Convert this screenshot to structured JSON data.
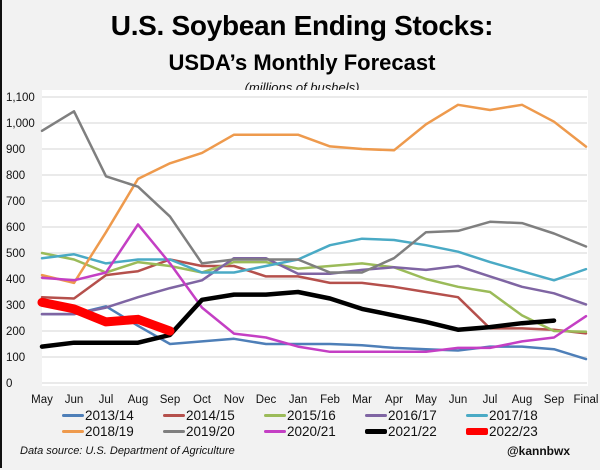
{
  "chart_data": {
    "type": "line",
    "title": "U.S. Soybean Ending Stocks:",
    "subtitle": "USDA’s Monthly Forecast",
    "units_note": "(millions of bushels)",
    "xlabel": "",
    "ylabel": "",
    "categories": [
      "May",
      "Jun",
      "Jul",
      "Aug",
      "Sep",
      "Oct",
      "Nov",
      "Dec",
      "Jan",
      "Feb",
      "Mar",
      "Apr",
      "May",
      "Jun",
      "Jul",
      "Aug",
      "Sep",
      "Final"
    ],
    "ylim": [
      0,
      1100
    ],
    "yticks": [
      0,
      100,
      200,
      300,
      400,
      500,
      600,
      700,
      800,
      900,
      1000,
      1100
    ],
    "ytick_labels": [
      "0",
      "100",
      "200",
      "300",
      "400",
      "500",
      "600",
      "700",
      "800",
      "900",
      "1,000",
      "1,100"
    ],
    "grid": true,
    "legend_position": "bottom",
    "series": [
      {
        "name": "2013/14",
        "color": "#4e7fb8",
        "values": [
          265,
          265,
          295,
          220,
          150,
          160,
          170,
          150,
          150,
          150,
          145,
          135,
          130,
          125,
          140,
          140,
          130,
          92
        ]
      },
      {
        "name": "2014/15",
        "color": "#b5504c",
        "values": [
          330,
          325,
          415,
          430,
          475,
          450,
          450,
          410,
          410,
          385,
          385,
          370,
          350,
          330,
          210,
          210,
          205,
          191
        ]
      },
      {
        "name": "2015/16",
        "color": "#9bbb59",
        "values": [
          500,
          475,
          425,
          465,
          450,
          425,
          465,
          465,
          440,
          450,
          460,
          445,
          400,
          370,
          350,
          260,
          200,
          197
        ]
      },
      {
        "name": "2016/17",
        "color": "#7f65a3",
        "values": [
          265,
          265,
          290,
          330,
          365,
          395,
          480,
          480,
          420,
          420,
          435,
          445,
          435,
          450,
          410,
          370,
          345,
          302
        ]
      },
      {
        "name": "2017/18",
        "color": "#4aaac5",
        "values": [
          480,
          495,
          460,
          475,
          475,
          425,
          425,
          450,
          475,
          530,
          555,
          550,
          530,
          505,
          465,
          430,
          395,
          438
        ]
      },
      {
        "name": "2018/19",
        "color": "#ee9a4d",
        "values": [
          415,
          385,
          580,
          785,
          845,
          885,
          955,
          955,
          955,
          910,
          900,
          895,
          995,
          1070,
          1050,
          1070,
          1005,
          909
        ]
      },
      {
        "name": "2019/20",
        "color": "#7f7f7f",
        "values": [
          970,
          1045,
          795,
          755,
          640,
          460,
          475,
          475,
          475,
          425,
          425,
          480,
          580,
          585,
          620,
          615,
          575,
          525
        ]
      },
      {
        "name": "2020/21",
        "color": "#c43fc4",
        "values": [
          405,
          395,
          425,
          610,
          460,
          290,
          190,
          175,
          140,
          120,
          120,
          120,
          120,
          135,
          135,
          160,
          175,
          257
        ]
      },
      {
        "name": "2021/22",
        "color": "#000000",
        "values": [
          140,
          155,
          155,
          155,
          185,
          320,
          340,
          340,
          350,
          325,
          285,
          260,
          235,
          205,
          215,
          230,
          240
        ]
      },
      {
        "name": "2022/23",
        "color": "#ff0000",
        "values": [
          310,
          285,
          235,
          245,
          200
        ]
      }
    ]
  },
  "footer": {
    "source": "Data source: U.S. Department of Agriculture",
    "handle": "@kannbwx"
  }
}
